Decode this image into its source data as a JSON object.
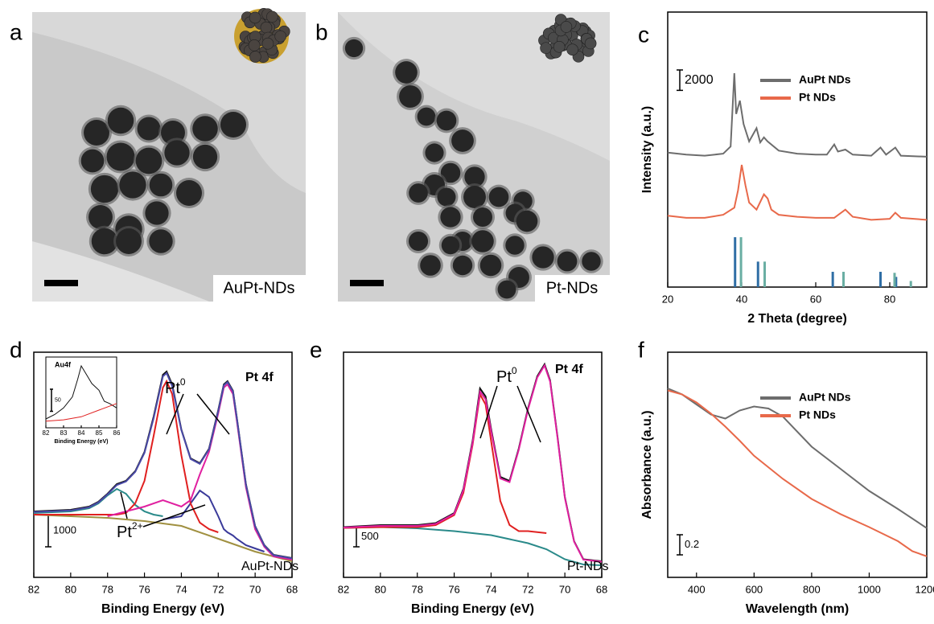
{
  "images": [
    {
      "panel_label": "a",
      "caption": "AuPt-NDs"
    },
    {
      "panel_label": "b",
      "caption": "Pt-NDs"
    }
  ],
  "chart_data": [
    {
      "type": "line",
      "panel_label": "c",
      "x_label": "2 Theta (degree)",
      "y_label": "Intensity (a.u.)",
      "xlim": [
        20,
        90
      ],
      "xticks": [
        20,
        40,
        60,
        80
      ],
      "ylim": [
        0,
        27000
      ],
      "scale_bar": 2000,
      "legend": "upper right",
      "series": [
        {
          "name": "AuPt NDs",
          "color": "#6d6d6d",
          "x": [
            20,
            25,
            30,
            35,
            37,
            38,
            38.5,
            39.5,
            40.5,
            42,
            44,
            45,
            46,
            47,
            50,
            55,
            60,
            63,
            65,
            66,
            68,
            70,
            75,
            77.5,
            79,
            81.5,
            83,
            90
          ],
          "values": [
            13200,
            13000,
            12900,
            13100,
            13800,
            21000,
            17000,
            18300,
            16000,
            14300,
            15600,
            14200,
            14700,
            14300,
            13400,
            13100,
            13000,
            13000,
            14000,
            13300,
            13500,
            13000,
            12900,
            13700,
            13000,
            13700,
            12900,
            12800
          ]
        },
        {
          "name": "Pt NDs",
          "color": "#e8694a",
          "x": [
            20,
            25,
            30,
            35,
            38,
            39,
            40,
            41,
            42,
            44,
            46,
            47,
            48,
            50,
            55,
            60,
            65,
            68,
            70,
            75,
            80,
            81.5,
            83,
            90
          ],
          "values": [
            7000,
            6800,
            6800,
            7100,
            7800,
            9500,
            12000,
            10000,
            8300,
            7600,
            9100,
            8700,
            7600,
            7100,
            6900,
            6800,
            6800,
            7600,
            6900,
            6600,
            6700,
            7300,
            6800,
            6600
          ]
        },
        {
          "style": "stick",
          "color": "#2f6ea5",
          "x": [
            38.2,
            44.4,
            64.6,
            77.5,
            81.7
          ],
          "values": [
            4900,
            2500,
            1500,
            1500,
            1000
          ]
        },
        {
          "style": "stick",
          "color": "#6aaea3",
          "x": [
            39.8,
            46.2,
            67.5,
            81.3,
            85.7
          ],
          "values": [
            4900,
            2500,
            1500,
            1400,
            600
          ]
        }
      ]
    },
    {
      "type": "line",
      "panel_label": "d",
      "x_label": "Binding Energy (eV)",
      "xlim": [
        82,
        68
      ],
      "xticks": [
        82,
        80,
        78,
        76,
        74,
        72,
        70,
        68
      ],
      "ylim": [
        0,
        7000
      ],
      "scale_bar": 1000,
      "annotations": [
        {
          "text": "Pt",
          "sup": "0"
        },
        {
          "text": "Pt 4f"
        },
        {
          "text": "Pt",
          "sup": "2+"
        },
        {
          "text": "AuPt-NDs"
        }
      ],
      "series": [
        {
          "color": "#a09040",
          "x": [
            82,
            80,
            78,
            76,
            74,
            72,
            70,
            68
          ],
          "values": [
            1950,
            1900,
            1850,
            1750,
            1600,
            1200,
            800,
            500
          ]
        },
        {
          "color": "#2a8a8a",
          "x": [
            82,
            80,
            79,
            78.5,
            78,
            77.5,
            77,
            76.5,
            76,
            75.5,
            75
          ],
          "values": [
            2000,
            2050,
            2150,
            2300,
            2550,
            2750,
            2600,
            2250,
            2050,
            1950,
            1900
          ]
        },
        {
          "color": "#3a3a9a",
          "x": [
            75,
            74,
            73.5,
            73,
            72.5,
            72,
            71.7,
            71.5,
            71.2,
            71,
            70.5,
            70,
            69.5
          ],
          "values": [
            1800,
            1900,
            2300,
            2700,
            2500,
            1900,
            1500,
            1400,
            1300,
            1200,
            1000,
            900,
            800
          ]
        },
        {
          "color": "#e02020",
          "x": [
            82,
            80,
            79,
            78.5,
            78,
            77.5,
            77,
            76.5,
            76,
            75.5,
            75,
            74.8,
            74.5,
            74,
            73.5,
            73,
            72.5,
            72
          ],
          "values": [
            1950,
            1950,
            1950,
            1950,
            1950,
            1950,
            2000,
            2300,
            3000,
            4400,
            5900,
            6100,
            5700,
            3800,
            2300,
            1700,
            1500,
            1400
          ]
        },
        {
          "color": "#e020a0",
          "x": [
            78,
            76,
            75,
            74,
            73.5,
            73,
            72.5,
            72,
            71.7,
            71.5,
            71.2,
            71,
            70.5,
            70,
            69.5,
            69,
            68
          ],
          "values": [
            1900,
            2200,
            2400,
            2200,
            2400,
            3200,
            3900,
            5100,
            5900,
            6000,
            5700,
            4900,
            2800,
            1500,
            950,
            650,
            550
          ]
        },
        {
          "color": "#111111",
          "x": [
            82,
            80,
            79,
            78.5,
            78,
            77.5,
            77,
            76.5,
            76,
            75.5,
            75,
            74.8,
            74.5,
            74,
            73.5,
            73,
            72.5,
            72,
            71.7,
            71.5,
            71.2,
            71,
            70.5,
            70,
            69.5,
            69,
            68
          ],
          "values": [
            2050,
            2100,
            2200,
            2350,
            2600,
            2900,
            3000,
            3300,
            3900,
            5000,
            6300,
            6400,
            6000,
            4600,
            3700,
            3550,
            4000,
            5200,
            6000,
            6100,
            5800,
            5000,
            2900,
            1600,
            1000,
            700,
            600
          ]
        },
        {
          "color": "#4a4aa8",
          "x": [
            82,
            80,
            79,
            78.5,
            78,
            77.5,
            77,
            76.5,
            76,
            75.5,
            75,
            74.8,
            74.5,
            74,
            73.5,
            73,
            72.5,
            72,
            71.7,
            71.5,
            71.2,
            71,
            70.5,
            70,
            69.5,
            69,
            68
          ],
          "values": [
            2030,
            2080,
            2180,
            2330,
            2580,
            2870,
            2980,
            3280,
            3870,
            4950,
            6250,
            6350,
            5950,
            4580,
            3680,
            3530,
            3980,
            5170,
            5970,
            6070,
            5780,
            4980,
            2880,
            1590,
            990,
            690,
            590
          ]
        }
      ]
    },
    {
      "type": "line",
      "title": "Au4f",
      "x_label": "Binding Energy (eV)",
      "xlim": [
        82,
        86
      ],
      "xticks": [
        82,
        83,
        84,
        85,
        86
      ],
      "ylim": [
        0,
        160
      ],
      "scale_bar": 50,
      "series": [
        {
          "color": "#111111",
          "x": [
            82,
            82.5,
            83,
            83.5,
            83.8,
            84,
            84.3,
            84.6,
            85,
            85.3,
            85.6,
            86
          ],
          "values": [
            20,
            30,
            45,
            70,
            110,
            140,
            120,
            100,
            85,
            60,
            55,
            45
          ]
        },
        {
          "color": "#e02020",
          "x": [
            82,
            83,
            84,
            85,
            86
          ],
          "values": [
            15,
            18,
            25,
            40,
            55
          ]
        }
      ]
    },
    {
      "type": "line",
      "panel_label": "e",
      "x_label": "Binding Energy (eV)",
      "xlim": [
        82,
        68
      ],
      "xticks": [
        82,
        80,
        78,
        76,
        74,
        72,
        70,
        68
      ],
      "ylim": [
        0,
        5600
      ],
      "scale_bar": 500,
      "annotations": [
        {
          "text": "Pt",
          "sup": "0"
        },
        {
          "text": "Pt 4f"
        },
        {
          "text": "Pt-NDs"
        }
      ],
      "series": [
        {
          "color": "#2a8a8a",
          "x": [
            82,
            80,
            78,
            76,
            74,
            72,
            71,
            70,
            69,
            68
          ],
          "values": [
            1230,
            1250,
            1220,
            1150,
            1050,
            850,
            700,
            450,
            320,
            300
          ]
        },
        {
          "color": "#e02020",
          "x": [
            82,
            80,
            78,
            77,
            76,
            75.5,
            75,
            74.6,
            74.3,
            74,
            73.5,
            73,
            72.5,
            72,
            71
          ],
          "values": [
            1230,
            1250,
            1250,
            1300,
            1550,
            2100,
            3300,
            4550,
            4300,
            3400,
            1900,
            1300,
            1150,
            1150,
            1100
          ]
        },
        {
          "color": "#111111",
          "x": [
            82,
            80,
            78,
            77,
            76,
            75.5,
            75,
            74.6,
            74.3,
            74,
            73.5,
            73,
            72.5,
            72,
            71.5,
            71.1,
            70.8,
            70.4,
            70,
            69.5,
            69,
            68
          ],
          "values": [
            1250,
            1300,
            1300,
            1350,
            1600,
            2200,
            3400,
            4700,
            4500,
            3700,
            2500,
            2400,
            3200,
            4200,
            5000,
            5300,
            4900,
            3500,
            2000,
            900,
            450,
            400
          ]
        },
        {
          "color": "#e020a0",
          "x": [
            82,
            80,
            78,
            77,
            76,
            75.5,
            75,
            74.6,
            74.3,
            74,
            73.5,
            73,
            72.5,
            72,
            71.5,
            71.1,
            70.8,
            70.4,
            70,
            69.5,
            69,
            68
          ],
          "values": [
            1240,
            1280,
            1280,
            1330,
            1580,
            2170,
            3350,
            4620,
            4430,
            3650,
            2460,
            2370,
            3170,
            4170,
            4970,
            5270,
            4870,
            3470,
            1980,
            890,
            440,
            390
          ]
        }
      ]
    },
    {
      "type": "line",
      "panel_label": "f",
      "x_label": "Wavelength (nm)",
      "y_label": "Absorbance (a.u.)",
      "xlim": [
        300,
        1200
      ],
      "xticks": [
        400,
        600,
        800,
        1000,
        1200
      ],
      "ylim": [
        0,
        2.24
      ],
      "scale_bar": 0.2,
      "legend": "upper right",
      "series": [
        {
          "name": "AuPt NDs",
          "color": "#6d6d6d",
          "x": [
            300,
            350,
            400,
            450,
            500,
            550,
            600,
            650,
            700,
            800,
            900,
            1000,
            1100,
            1200
          ],
          "values": [
            1.88,
            1.82,
            1.72,
            1.62,
            1.58,
            1.66,
            1.7,
            1.68,
            1.6,
            1.3,
            1.08,
            0.86,
            0.68,
            0.49
          ]
        },
        {
          "name": "Pt NDs",
          "color": "#e8694a",
          "x": [
            300,
            350,
            400,
            450,
            500,
            550,
            600,
            700,
            800,
            900,
            1000,
            1100,
            1150,
            1200
          ],
          "values": [
            1.86,
            1.82,
            1.74,
            1.63,
            1.5,
            1.36,
            1.21,
            0.98,
            0.78,
            0.63,
            0.5,
            0.36,
            0.26,
            0.21
          ]
        }
      ]
    }
  ]
}
